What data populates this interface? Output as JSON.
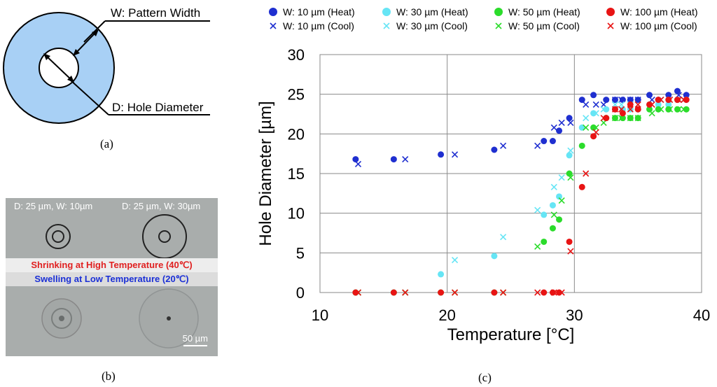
{
  "panel_a": {
    "label_width": "W: Pattern Width",
    "label_diameter": "D: Hole Diameter",
    "caption": "(a)",
    "ring_color": "#a8d0f5"
  },
  "panel_b": {
    "caption": "(b)",
    "left_label": "D: 25 µm, W: 10µm",
    "right_label": "D: 25 µm, W: 30µm",
    "shrink_text": "Shrinking at High Temperature (40℃)",
    "swell_text": "Swelling at Low Temperature (20℃)",
    "scale_label": "50 µm"
  },
  "panel_c": {
    "caption": "(c)"
  },
  "chart_data": {
    "type": "scatter",
    "xlabel": "Temperature [°C]",
    "ylabel": "Hole Diameter [µm]",
    "xlim": [
      10,
      40
    ],
    "ylim": [
      0,
      30
    ],
    "xticks": [
      "10",
      "20",
      "30",
      "40"
    ],
    "yticks": [
      "0",
      "5",
      "10",
      "15",
      "20",
      "25",
      "30"
    ],
    "grid": true,
    "legend_position": "top",
    "series": [
      {
        "name": "W: 10 µm (Heat)",
        "marker": "circle",
        "color": "#1f2fd0",
        "points": [
          [
            12.8,
            16.8
          ],
          [
            15.8,
            16.8
          ],
          [
            19.5,
            17.4
          ],
          [
            23.7,
            18.0
          ],
          [
            27.6,
            19.1
          ],
          [
            28.3,
            19.1
          ],
          [
            28.8,
            20.4
          ],
          [
            29.6,
            22.0
          ],
          [
            30.6,
            24.3
          ],
          [
            31.5,
            24.9
          ],
          [
            32.5,
            24.3
          ],
          [
            33.2,
            24.3
          ],
          [
            33.8,
            24.3
          ],
          [
            34.4,
            24.3
          ],
          [
            35.0,
            24.3
          ],
          [
            35.9,
            24.9
          ],
          [
            36.6,
            24.3
          ],
          [
            37.4,
            24.9
          ],
          [
            38.1,
            25.4
          ],
          [
            38.8,
            24.9
          ]
        ]
      },
      {
        "name": "W: 10 µm (Cool)",
        "marker": "x",
        "color": "#1f2fd0",
        "points": [
          [
            13.0,
            16.2
          ],
          [
            16.7,
            16.8
          ],
          [
            20.6,
            17.4
          ],
          [
            24.4,
            18.5
          ],
          [
            27.1,
            18.5
          ],
          [
            28.4,
            20.8
          ],
          [
            29.0,
            21.4
          ],
          [
            29.7,
            21.4
          ],
          [
            30.9,
            23.7
          ],
          [
            31.7,
            23.7
          ],
          [
            32.3,
            23.7
          ],
          [
            33.2,
            24.3
          ],
          [
            33.7,
            24.3
          ],
          [
            34.4,
            24.3
          ],
          [
            35.0,
            24.3
          ],
          [
            36.1,
            24.3
          ],
          [
            36.8,
            24.3
          ],
          [
            37.5,
            24.3
          ],
          [
            38.2,
            24.9
          ],
          [
            38.6,
            24.3
          ]
        ]
      },
      {
        "name": "W: 30 µm (Heat)",
        "marker": "circle",
        "color": "#66e5f5",
        "points": [
          [
            12.8,
            0
          ],
          [
            15.8,
            0
          ],
          [
            19.5,
            2.3
          ],
          [
            23.7,
            4.6
          ],
          [
            27.6,
            9.8
          ],
          [
            28.3,
            11.0
          ],
          [
            28.8,
            12.1
          ],
          [
            29.6,
            17.3
          ],
          [
            30.6,
            20.8
          ],
          [
            31.5,
            22.6
          ],
          [
            32.5,
            23.1
          ],
          [
            33.2,
            23.1
          ],
          [
            33.8,
            23.1
          ],
          [
            34.4,
            23.1
          ],
          [
            35.0,
            23.1
          ],
          [
            35.9,
            23.7
          ],
          [
            36.6,
            23.7
          ],
          [
            37.4,
            23.7
          ],
          [
            38.1,
            24.3
          ],
          [
            38.8,
            24.3
          ]
        ]
      },
      {
        "name": "W: 30 µm (Cool)",
        "marker": "x",
        "color": "#66e5f5",
        "points": [
          [
            13.0,
            0
          ],
          [
            16.7,
            0
          ],
          [
            20.6,
            4.1
          ],
          [
            24.4,
            7.0
          ],
          [
            27.1,
            10.4
          ],
          [
            28.4,
            13.3
          ],
          [
            29.0,
            14.5
          ],
          [
            29.7,
            17.9
          ],
          [
            30.9,
            22.0
          ],
          [
            31.7,
            22.6
          ],
          [
            32.3,
            23.1
          ],
          [
            33.2,
            23.7
          ],
          [
            33.7,
            23.7
          ],
          [
            34.4,
            23.7
          ],
          [
            35.0,
            23.7
          ],
          [
            36.1,
            23.7
          ],
          [
            36.8,
            24.3
          ],
          [
            37.5,
            24.3
          ],
          [
            38.2,
            24.3
          ],
          [
            38.6,
            24.3
          ]
        ]
      },
      {
        "name": "W: 50 µm (Heat)",
        "marker": "circle",
        "color": "#2bdc2b",
        "points": [
          [
            12.8,
            0
          ],
          [
            15.8,
            0
          ],
          [
            19.5,
            0
          ],
          [
            23.7,
            0
          ],
          [
            27.6,
            6.4
          ],
          [
            28.3,
            8.1
          ],
          [
            28.8,
            9.2
          ],
          [
            29.6,
            15.0
          ],
          [
            30.6,
            18.5
          ],
          [
            31.5,
            20.8
          ],
          [
            32.5,
            22.0
          ],
          [
            33.2,
            22.0
          ],
          [
            33.8,
            22.0
          ],
          [
            34.4,
            22.0
          ],
          [
            35.0,
            22.0
          ],
          [
            35.9,
            23.1
          ],
          [
            36.6,
            23.1
          ],
          [
            37.4,
            23.1
          ],
          [
            38.1,
            23.1
          ],
          [
            38.8,
            23.1
          ]
        ]
      },
      {
        "name": "W: 50 µm (Cool)",
        "marker": "x",
        "color": "#2bdc2b",
        "points": [
          [
            13.0,
            0
          ],
          [
            16.7,
            0
          ],
          [
            20.6,
            0
          ],
          [
            24.4,
            0
          ],
          [
            27.1,
            5.8
          ],
          [
            28.4,
            9.8
          ],
          [
            29.0,
            11.6
          ],
          [
            29.7,
            14.5
          ],
          [
            30.9,
            20.8
          ],
          [
            31.7,
            20.8
          ],
          [
            32.3,
            21.4
          ],
          [
            33.2,
            22.0
          ],
          [
            33.7,
            22.0
          ],
          [
            34.4,
            22.0
          ],
          [
            35.0,
            22.0
          ],
          [
            36.1,
            22.6
          ],
          [
            36.8,
            23.1
          ],
          [
            37.5,
            23.1
          ],
          [
            38.2,
            23.1
          ],
          [
            38.6,
            23.1
          ]
        ]
      },
      {
        "name": "W: 100 µm (Heat)",
        "marker": "circle",
        "color": "#e81414",
        "points": [
          [
            12.8,
            0
          ],
          [
            15.8,
            0
          ],
          [
            19.5,
            0
          ],
          [
            23.7,
            0
          ],
          [
            27.6,
            0
          ],
          [
            28.3,
            0
          ],
          [
            28.8,
            0
          ],
          [
            29.6,
            6.4
          ],
          [
            30.6,
            13.3
          ],
          [
            31.5,
            19.7
          ],
          [
            32.5,
            22.0
          ],
          [
            33.2,
            23.1
          ],
          [
            33.8,
            22.6
          ],
          [
            34.4,
            23.7
          ],
          [
            35.0,
            23.1
          ],
          [
            35.9,
            23.7
          ],
          [
            36.6,
            24.3
          ],
          [
            37.4,
            24.3
          ],
          [
            38.1,
            24.3
          ],
          [
            38.8,
            24.3
          ]
        ]
      },
      {
        "name": "W: 100 µm (Cool)",
        "marker": "x",
        "color": "#e81414",
        "points": [
          [
            13.0,
            0
          ],
          [
            16.7,
            0
          ],
          [
            20.6,
            0
          ],
          [
            24.4,
            0
          ],
          [
            27.1,
            0
          ],
          [
            28.4,
            0
          ],
          [
            29.0,
            0
          ],
          [
            29.7,
            5.2
          ],
          [
            30.9,
            15.0
          ],
          [
            31.7,
            20.2
          ],
          [
            32.3,
            22.0
          ],
          [
            33.2,
            23.1
          ],
          [
            33.7,
            23.1
          ],
          [
            34.4,
            23.1
          ],
          [
            35.0,
            23.7
          ],
          [
            36.1,
            23.7
          ],
          [
            36.8,
            24.3
          ],
          [
            37.5,
            24.3
          ],
          [
            38.2,
            24.3
          ],
          [
            38.6,
            24.3
          ]
        ]
      }
    ]
  }
}
